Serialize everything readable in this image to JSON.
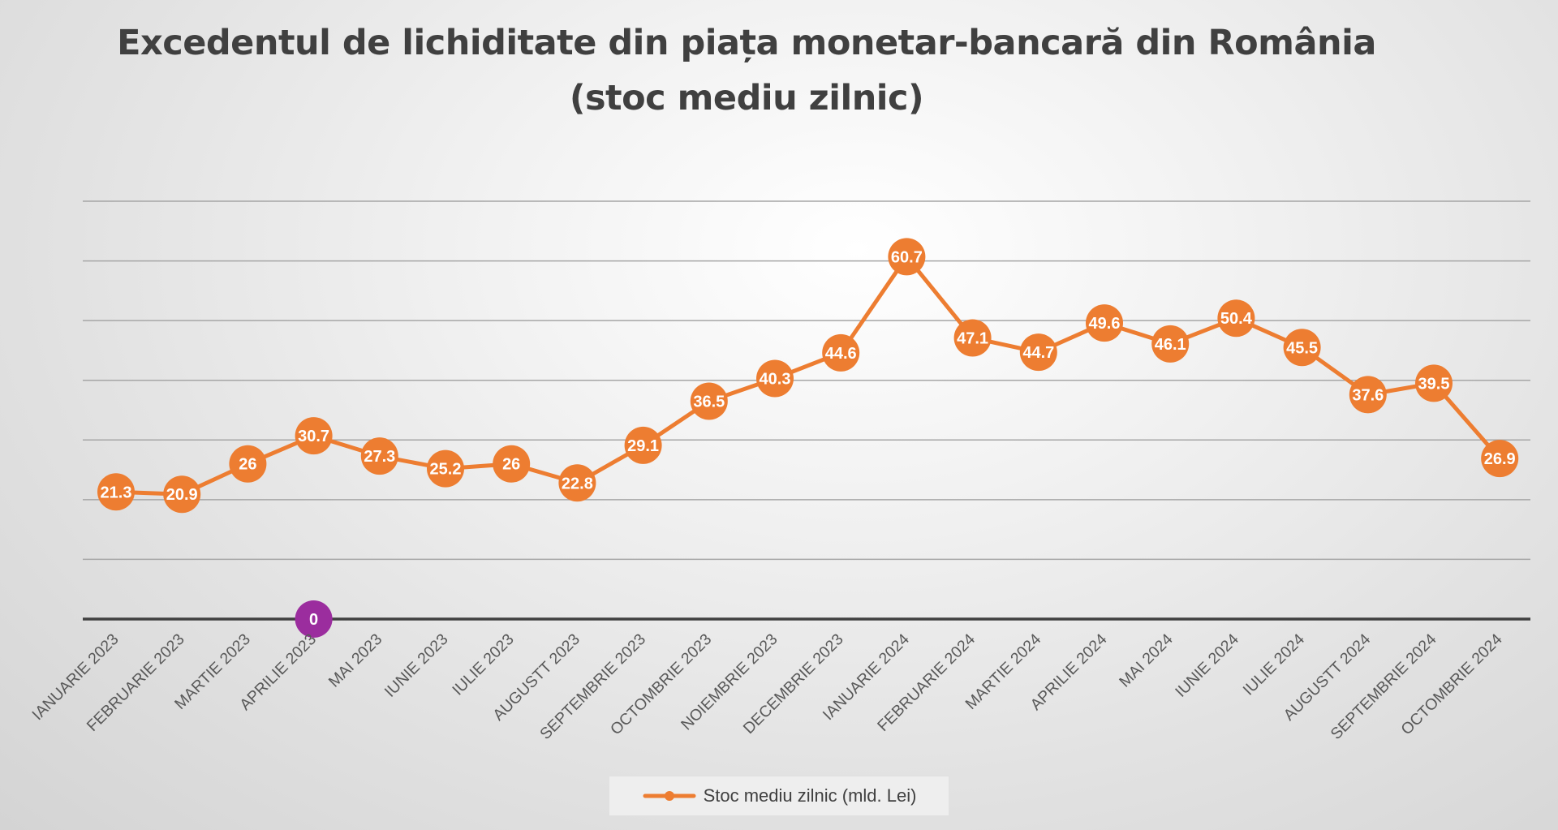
{
  "title_line1": "Excedentul de lichiditate din piața monetar-bancară din România",
  "title_line2": "(stoc mediu zilnic)",
  "colors": {
    "series": "#ED7D31",
    "zero_marker": "#9B2D9E",
    "gridline": "#a6a6a6",
    "axis": "#404040",
    "label_text": "#ffffff",
    "tick_text": "#595959"
  },
  "chart_data": {
    "type": "line",
    "categories": [
      "IANUARIE 2023",
      "FEBRUARIE 2023",
      "MARTIE 2023",
      "APRILIE 2023",
      "MAI 2023",
      "IUNIE 2023",
      "IULIE 2023",
      "AUGUSTT 2023",
      "SEPTEMBRIE 2023",
      "OCTOMBRIE 2023",
      "NOIEMBRIE 2023",
      "DECEMBRIE 2023",
      "IANUARIE 2024",
      "FEBRUARIE 2024",
      "MARTIE 2024",
      "APRILIE 2024",
      "MAI 2024",
      "IUNIE 2024",
      "IULIE 2024",
      "AUGUSTT 2024",
      "SEPTEMBRIE 2024",
      "OCTOMBRIE 2024"
    ],
    "series": [
      {
        "name": "Stoc mediu zilnic (mld. Lei)",
        "values": [
          21.3,
          20.9,
          26,
          30.7,
          27.3,
          25.2,
          26,
          22.8,
          29.1,
          36.5,
          40.3,
          44.6,
          60.7,
          47.1,
          44.7,
          49.6,
          46.1,
          50.4,
          45.5,
          37.6,
          39.5,
          26.9
        ],
        "data_labels": [
          "21.3",
          "20.9",
          "26",
          "30.7",
          "27.3",
          "25.2",
          "26",
          "22.8",
          "29.1",
          "36.5",
          "40.3",
          "44.6",
          "60.7",
          "47.1",
          "44.7",
          "49.6",
          "46.1",
          "50.4",
          "45.5",
          "37.6",
          "39.5",
          "26.9"
        ]
      }
    ],
    "extra_marker": {
      "category": "APRILIE 2023",
      "value": 0,
      "label": "0"
    },
    "ylim": [
      0,
      70
    ],
    "ygrid_step": 10,
    "grid": true,
    "legend_position": "bottom",
    "xlabel": "",
    "ylabel": ""
  },
  "legend": {
    "label": "Stoc mediu zilnic (mld. Lei)"
  }
}
